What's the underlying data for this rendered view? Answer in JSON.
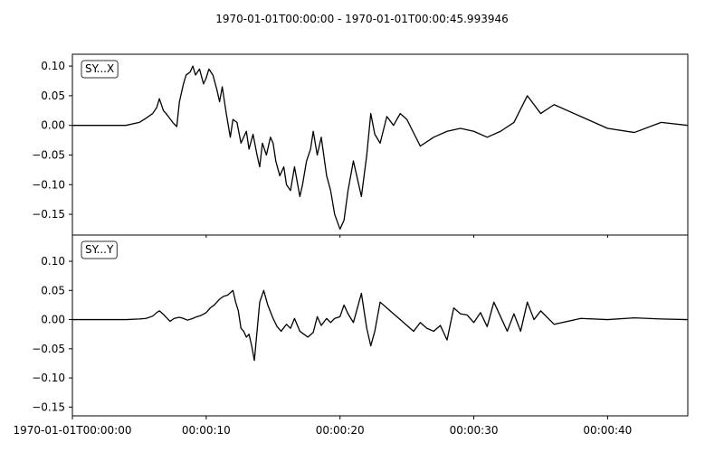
{
  "chart_data": {
    "type": "line",
    "title": "1970-01-01T00:00:00  -  1970-01-01T00:00:45.993946",
    "xlabel": "",
    "xlim": [
      0,
      45.993946
    ],
    "x_ticks": [
      {
        "value": 0,
        "label": "1970-01-01T00:00:00"
      },
      {
        "value": 10,
        "label": "00:00:10"
      },
      {
        "value": 20,
        "label": "00:00:20"
      },
      {
        "value": 30,
        "label": "00:00:30"
      },
      {
        "value": 40,
        "label": "00:00:40"
      }
    ],
    "grid": false,
    "panels": [
      {
        "label": "SY...X",
        "ylim": [
          -0.185,
          0.12
        ],
        "y_ticks": [
          {
            "value": 0.1,
            "label": "0.10"
          },
          {
            "value": 0.05,
            "label": "0.05"
          },
          {
            "value": 0.0,
            "label": "0.00"
          },
          {
            "value": -0.05,
            "label": "−0.05"
          },
          {
            "value": -0.1,
            "label": "−0.10"
          },
          {
            "value": -0.15,
            "label": "−0.15"
          }
        ],
        "x": [
          0,
          2,
          4,
          5,
          5.5,
          6,
          6.3,
          6.5,
          6.8,
          7,
          7.5,
          7.8,
          8,
          8.3,
          8.5,
          8.8,
          9,
          9.2,
          9.5,
          9.8,
          10,
          10.2,
          10.5,
          10.8,
          11,
          11.2,
          11.5,
          11.8,
          12,
          12.3,
          12.6,
          13,
          13.2,
          13.5,
          13.8,
          14,
          14.2,
          14.5,
          14.8,
          15,
          15.2,
          15.5,
          15.8,
          16,
          16.3,
          16.6,
          17,
          17.2,
          17.5,
          17.8,
          18,
          18.3,
          18.6,
          19,
          19.3,
          19.6,
          20,
          20.3,
          20.6,
          21,
          21.3,
          21.6,
          22,
          22.3,
          22.6,
          23,
          23.5,
          24,
          24.5,
          25,
          26,
          27,
          28,
          29,
          30,
          31,
          32,
          33,
          34,
          35,
          36,
          38,
          40,
          42,
          44,
          45.99
        ],
        "y": [
          0.0,
          0.0,
          0.0,
          0.005,
          0.012,
          0.02,
          0.03,
          0.045,
          0.025,
          0.02,
          0.005,
          -0.002,
          0.04,
          0.07,
          0.085,
          0.09,
          0.1,
          0.085,
          0.095,
          0.07,
          0.08,
          0.095,
          0.085,
          0.06,
          0.04,
          0.065,
          0.02,
          -0.02,
          0.01,
          0.005,
          -0.03,
          -0.01,
          -0.04,
          -0.015,
          -0.05,
          -0.07,
          -0.03,
          -0.05,
          -0.02,
          -0.03,
          -0.06,
          -0.085,
          -0.07,
          -0.1,
          -0.11,
          -0.07,
          -0.12,
          -0.1,
          -0.06,
          -0.04,
          -0.01,
          -0.05,
          -0.02,
          -0.085,
          -0.11,
          -0.15,
          -0.175,
          -0.16,
          -0.11,
          -0.06,
          -0.09,
          -0.12,
          -0.05,
          0.02,
          -0.015,
          -0.03,
          0.015,
          0.0,
          0.02,
          0.01,
          -0.035,
          -0.02,
          -0.01,
          -0.005,
          -0.01,
          -0.02,
          -0.01,
          0.005,
          0.05,
          0.02,
          0.035,
          0.015,
          -0.005,
          -0.012,
          0.005,
          0.0
        ],
        "color": "#000000"
      },
      {
        "label": "SY...Y",
        "ylim": [
          -0.165,
          0.145
        ],
        "y_ticks": [
          {
            "value": 0.1,
            "label": "0.10"
          },
          {
            "value": 0.05,
            "label": "0.05"
          },
          {
            "value": 0.0,
            "label": "0.00"
          },
          {
            "value": -0.05,
            "label": "−0.05"
          },
          {
            "value": -0.1,
            "label": "−0.10"
          },
          {
            "value": -0.15,
            "label": "−0.15"
          }
        ],
        "x": [
          0,
          2,
          4,
          5,
          5.5,
          6,
          6.3,
          6.5,
          6.8,
          7,
          7.3,
          7.6,
          8,
          8.3,
          8.6,
          9,
          9.3,
          9.6,
          10,
          10.3,
          10.6,
          11,
          11.3,
          11.6,
          12,
          12.2,
          12.4,
          12.6,
          12.8,
          13,
          13.2,
          13.4,
          13.6,
          14,
          14.3,
          14.6,
          15,
          15.3,
          15.6,
          16,
          16.3,
          16.6,
          17,
          17.3,
          17.6,
          18,
          18.3,
          18.6,
          19,
          19.3,
          19.6,
          20,
          20.3,
          20.6,
          21,
          21.3,
          21.6,
          22,
          22.3,
          22.6,
          23,
          23.5,
          24,
          24.5,
          25,
          25.5,
          26,
          26.5,
          27,
          27.5,
          28,
          28.5,
          29,
          29.5,
          30,
          30.5,
          31,
          31.5,
          32,
          32.5,
          33,
          33.5,
          34,
          34.5,
          35,
          36,
          38,
          40,
          42,
          44,
          45.99
        ],
        "y": [
          0.0,
          0.0,
          0.0,
          0.001,
          0.002,
          0.006,
          0.012,
          0.015,
          0.009,
          0.004,
          -0.003,
          0.002,
          0.004,
          0.002,
          -0.001,
          0.002,
          0.005,
          0.007,
          0.012,
          0.02,
          0.025,
          0.035,
          0.04,
          0.042,
          0.05,
          0.03,
          0.015,
          -0.015,
          -0.02,
          -0.03,
          -0.025,
          -0.045,
          -0.07,
          0.03,
          0.05,
          0.025,
          0.002,
          -0.012,
          -0.02,
          -0.008,
          -0.015,
          0.002,
          -0.02,
          -0.025,
          -0.03,
          -0.022,
          0.005,
          -0.01,
          0.002,
          -0.005,
          0.002,
          0.005,
          0.025,
          0.01,
          -0.005,
          0.02,
          0.045,
          -0.015,
          -0.045,
          -0.02,
          0.03,
          0.02,
          0.01,
          0.0,
          -0.01,
          -0.02,
          -0.005,
          -0.015,
          -0.02,
          -0.01,
          -0.035,
          0.02,
          0.01,
          0.008,
          -0.005,
          0.012,
          -0.012,
          0.03,
          0.005,
          -0.02,
          0.01,
          -0.02,
          0.03,
          0.0,
          0.015,
          -0.008,
          0.002,
          0.0,
          0.003,
          0.001,
          0.0
        ],
        "color": "#000000"
      }
    ]
  }
}
